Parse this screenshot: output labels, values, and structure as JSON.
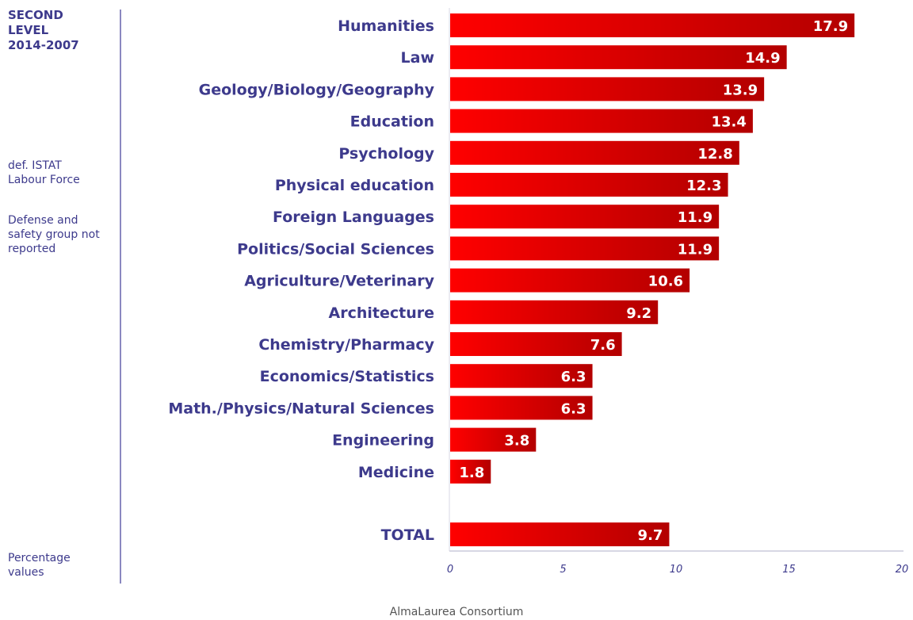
{
  "side": {
    "level_title": "SECOND\nLEVEL\n2014-2007",
    "note_istat": "def. ISTAT\nLabour Force",
    "note_defense": "Defense and\nsafety group not\nreported",
    "note_percent": "Percentage\nvalues"
  },
  "footer": "AlmaLaurea Consortium",
  "colors": {
    "bar_light": "#ff0000",
    "bar_dark": "#b30000",
    "label": "#3d3a8c",
    "axis": "#b0b0c8"
  },
  "chart_data": {
    "type": "bar",
    "orientation": "horizontal",
    "categories": [
      "Humanities",
      "Law",
      "Geology/Biology/Geography",
      "Education",
      "Psychology",
      "Physical education",
      "Foreign Languages",
      "Politics/Social Sciences",
      "Agriculture/Veterinary",
      "Architecture",
      "Chemistry/Pharmacy",
      "Economics/Statistics",
      "Math./Physics/Natural Sciences",
      "Engineering",
      "Medicine"
    ],
    "values": [
      17.9,
      14.9,
      13.9,
      13.4,
      12.8,
      12.3,
      11.9,
      11.9,
      10.6,
      9.2,
      7.6,
      6.3,
      6.3,
      3.8,
      1.8
    ],
    "total": {
      "label": "TOTAL",
      "value": 9.7
    },
    "xlim": [
      0,
      20
    ],
    "xticks": [
      0,
      5,
      10,
      15,
      20
    ],
    "grid": false,
    "legend": "none"
  }
}
